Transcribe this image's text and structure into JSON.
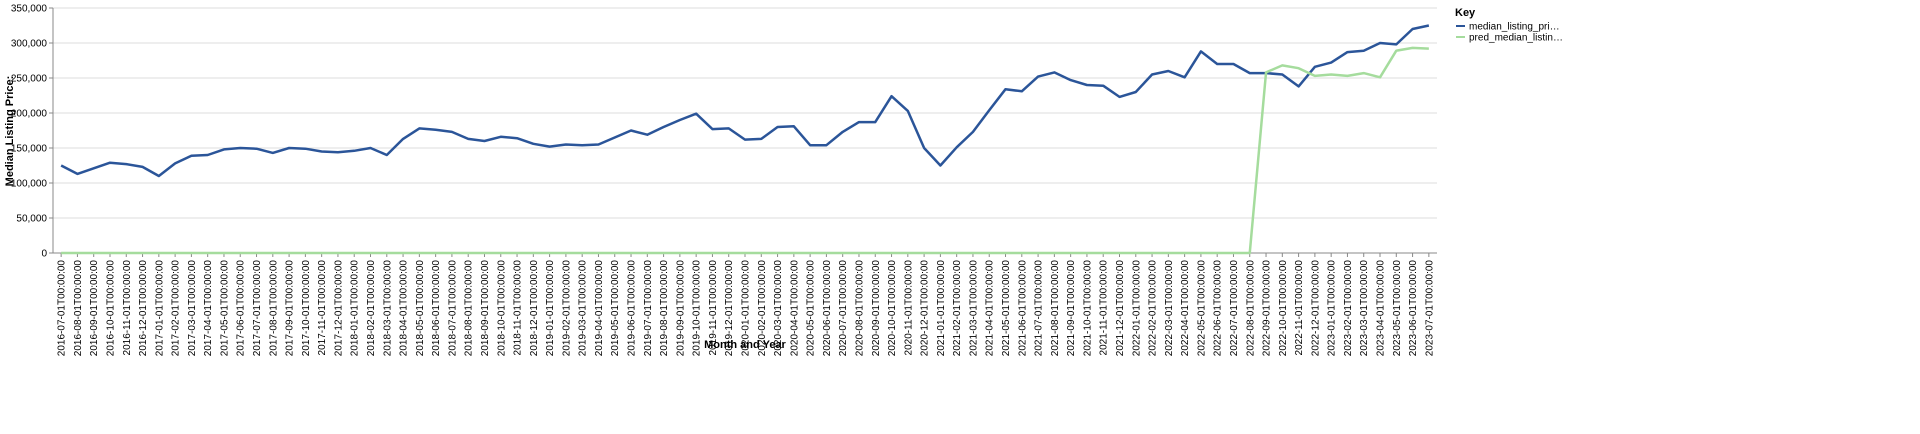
{
  "chart_data": {
    "type": "line",
    "x_label": "Month and Year",
    "y_label": "Median Listing Price:",
    "legend_title": "Key",
    "legend_position": "right",
    "grid": true,
    "categories": [
      "2016-07-01T00:00:00",
      "2016-08-01T00:00:00",
      "2016-09-01T00:00:00",
      "2016-10-01T00:00:00",
      "2016-11-01T00:00:00",
      "2016-12-01T00:00:00",
      "2017-01-01T00:00:00",
      "2017-02-01T00:00:00",
      "2017-03-01T00:00:00",
      "2017-04-01T00:00:00",
      "2017-05-01T00:00:00",
      "2017-06-01T00:00:00",
      "2017-07-01T00:00:00",
      "2017-08-01T00:00:00",
      "2017-09-01T00:00:00",
      "2017-10-01T00:00:00",
      "2017-11-01T00:00:00",
      "2017-12-01T00:00:00",
      "2018-01-01T00:00:00",
      "2018-02-01T00:00:00",
      "2018-03-01T00:00:00",
      "2018-04-01T00:00:00",
      "2018-05-01T00:00:00",
      "2018-06-01T00:00:00",
      "2018-07-01T00:00:00",
      "2018-08-01T00:00:00",
      "2018-09-01T00:00:00",
      "2018-10-01T00:00:00",
      "2018-11-01T00:00:00",
      "2018-12-01T00:00:00",
      "2019-01-01T00:00:00",
      "2019-02-01T00:00:00",
      "2019-03-01T00:00:00",
      "2019-04-01T00:00:00",
      "2019-05-01T00:00:00",
      "2019-06-01T00:00:00",
      "2019-07-01T00:00:00",
      "2019-08-01T00:00:00",
      "2019-09-01T00:00:00",
      "2019-10-01T00:00:00",
      "2019-11-01T00:00:00",
      "2019-12-01T00:00:00",
      "2020-01-01T00:00:00",
      "2020-02-01T00:00:00",
      "2020-03-01T00:00:00",
      "2020-04-01T00:00:00",
      "2020-05-01T00:00:00",
      "2020-06-01T00:00:00",
      "2020-07-01T00:00:00",
      "2020-08-01T00:00:00",
      "2020-09-01T00:00:00",
      "2020-10-01T00:00:00",
      "2020-11-01T00:00:00",
      "2020-12-01T00:00:00",
      "2021-01-01T00:00:00",
      "2021-02-01T00:00:00",
      "2021-03-01T00:00:00",
      "2021-04-01T00:00:00",
      "2021-05-01T00:00:00",
      "2021-06-01T00:00:00",
      "2021-07-01T00:00:00",
      "2021-08-01T00:00:00",
      "2021-09-01T00:00:00",
      "2021-10-01T00:00:00",
      "2021-11-01T00:00:00",
      "2021-12-01T00:00:00",
      "2022-01-01T00:00:00",
      "2022-02-01T00:00:00",
      "2022-03-01T00:00:00",
      "2022-04-01T00:00:00",
      "2022-05-01T00:00:00",
      "2022-06-01T00:00:00",
      "2022-07-01T00:00:00",
      "2022-08-01T00:00:00",
      "2022-09-01T00:00:00",
      "2022-10-01T00:00:00",
      "2022-11-01T00:00:00",
      "2022-12-01T00:00:00",
      "2023-01-01T00:00:00",
      "2023-02-01T00:00:00",
      "2023-03-01T00:00:00",
      "2023-04-01T00:00:00",
      "2023-05-01T00:00:00",
      "2023-06-01T00:00:00",
      "2023-07-01T00:00:00"
    ],
    "series": [
      {
        "name": "median_listing_pri…",
        "color": "#2b5599",
        "values": [
          125000,
          113000,
          121000,
          129000,
          127000,
          123000,
          110000,
          128000,
          139000,
          140000,
          148000,
          150000,
          149000,
          143000,
          150000,
          149000,
          145000,
          144000,
          146000,
          150000,
          140000,
          163000,
          178000,
          176000,
          173000,
          163000,
          160000,
          166000,
          164000,
          156000,
          152000,
          155000,
          154000,
          155000,
          165000,
          175000,
          169000,
          180000,
          190000,
          199000,
          177000,
          178000,
          162000,
          163000,
          180000,
          181000,
          154000,
          154000,
          173000,
          187000,
          187000,
          224000,
          203000,
          150000,
          125000,
          151000,
          173000,
          204000,
          234000,
          231000,
          252000,
          258000,
          247000,
          240000,
          239000,
          223000,
          230000,
          255000,
          260000,
          251000,
          288000,
          270000,
          270000,
          257000,
          257000,
          255000,
          238000,
          266000,
          272000,
          287000,
          289000,
          300000,
          298000,
          320000,
          325000
        ]
      },
      {
        "name": "pred_median_listin…",
        "color": "#a5dc9d",
        "values": [
          0,
          0,
          0,
          0,
          0,
          0,
          0,
          0,
          0,
          0,
          0,
          0,
          0,
          0,
          0,
          0,
          0,
          0,
          0,
          0,
          0,
          0,
          0,
          0,
          0,
          0,
          0,
          0,
          0,
          0,
          0,
          0,
          0,
          0,
          0,
          0,
          0,
          0,
          0,
          0,
          0,
          0,
          0,
          0,
          0,
          0,
          0,
          0,
          0,
          0,
          0,
          0,
          0,
          0,
          0,
          0,
          0,
          0,
          0,
          0,
          0,
          0,
          0,
          0,
          0,
          0,
          0,
          0,
          0,
          0,
          0,
          0,
          0,
          0,
          258000,
          268000,
          264000,
          253000,
          255000,
          253000,
          257000,
          251000,
          289000,
          293000,
          292000
        ]
      }
    ],
    "ylim": [
      0,
      350000
    ],
    "yticks": [
      0,
      {
        "value": 50000,
        "label": "50,000"
      },
      {
        "value": 100000,
        "label": "100,000"
      },
      {
        "value": 150000,
        "label": "150,000"
      },
      {
        "value": 200000,
        "label": "200,000"
      },
      {
        "value": 250000,
        "label": "250,000"
      },
      {
        "value": 300000,
        "label": "300,000"
      },
      {
        "value": 350000,
        "label": "350,000"
      }
    ]
  }
}
